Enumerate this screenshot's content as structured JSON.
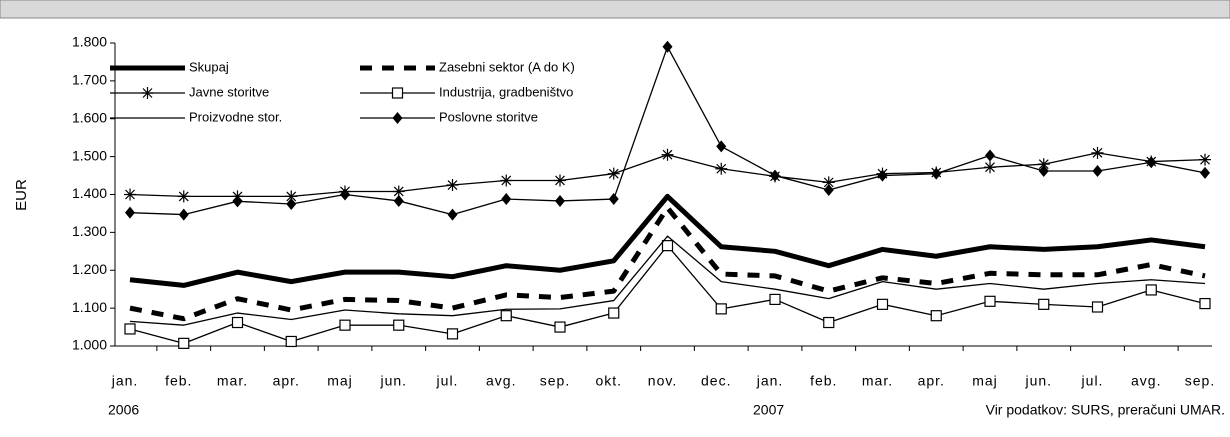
{
  "chart_data": {
    "type": "line",
    "y_label": "EUR",
    "categories": [
      "jan.",
      "feb.",
      "mar.",
      "apr.",
      "maj",
      "jun.",
      "jul.",
      "avg.",
      "sep.",
      "okt.",
      "nov.",
      "dec.",
      "jan.",
      "feb.",
      "mar.",
      "apr.",
      "maj",
      "jun.",
      "jul.",
      "avg.",
      "sep."
    ],
    "years": [
      "2006",
      "2007"
    ],
    "source": "Vir podatkov: SURS, preračuni UMAR.",
    "ylim": [
      1000,
      1800
    ],
    "yticks": [
      {
        "value": 1000,
        "label": "1.000"
      },
      {
        "value": 1100,
        "label": "1.100"
      },
      {
        "value": 1200,
        "label": "1.200"
      },
      {
        "value": 1300,
        "label": "1.300"
      },
      {
        "value": 1400,
        "label": "1.400"
      },
      {
        "value": 1500,
        "label": "1.500"
      },
      {
        "value": 1600,
        "label": "1.600"
      },
      {
        "value": 1700,
        "label": "1.700"
      },
      {
        "value": 1800,
        "label": "1.800"
      }
    ],
    "series": [
      {
        "name": "Skupaj",
        "color": "#000000",
        "line": "thick",
        "marker": "none",
        "values": [
          1175,
          1160,
          1195,
          1170,
          1195,
          1195,
          1183,
          1212,
          1200,
          1225,
          1395,
          1262,
          1250,
          1212,
          1255,
          1237,
          1262,
          1255,
          1262,
          1280,
          1262
        ]
      },
      {
        "name": "Zasebni sektor (A do K)",
        "color": "#000000",
        "line": "dashed",
        "marker": "none",
        "values": [
          1100,
          1072,
          1125,
          1095,
          1123,
          1120,
          1100,
          1135,
          1128,
          1145,
          1365,
          1190,
          1185,
          1145,
          1180,
          1165,
          1192,
          1188,
          1188,
          1215,
          1185
        ]
      },
      {
        "name": "Javne storitve",
        "color": "#000000",
        "line": "thin",
        "marker": "star",
        "values": [
          1400,
          1395,
          1395,
          1395,
          1408,
          1408,
          1425,
          1437,
          1437,
          1455,
          1505,
          1468,
          1448,
          1432,
          1455,
          1458,
          1472,
          1480,
          1510,
          1487,
          1492
        ]
      },
      {
        "name": "Industrija, gradbeništvo",
        "color": "#000000",
        "line": "thin",
        "marker": "square",
        "values": [
          1045,
          1007,
          1062,
          1012,
          1055,
          1055,
          1032,
          1080,
          1050,
          1087,
          1265,
          1098,
          1123,
          1062,
          1110,
          1080,
          1118,
          1110,
          1103,
          1148,
          1112
        ]
      },
      {
        "name": "Proizvodne stor.",
        "color": "#000000",
        "line": "thin",
        "marker": "none",
        "values": [
          1065,
          1055,
          1087,
          1070,
          1095,
          1085,
          1080,
          1097,
          1098,
          1120,
          1290,
          1170,
          1150,
          1125,
          1170,
          1150,
          1165,
          1150,
          1165,
          1175,
          1165
        ]
      },
      {
        "name": "Poslovne storitve",
        "color": "#000000",
        "line": "thin",
        "marker": "diamond",
        "values": [
          1352,
          1347,
          1382,
          1375,
          1400,
          1383,
          1347,
          1388,
          1383,
          1388,
          1790,
          1527,
          1450,
          1412,
          1450,
          1455,
          1503,
          1462,
          1462,
          1485,
          1457
        ]
      }
    ]
  }
}
